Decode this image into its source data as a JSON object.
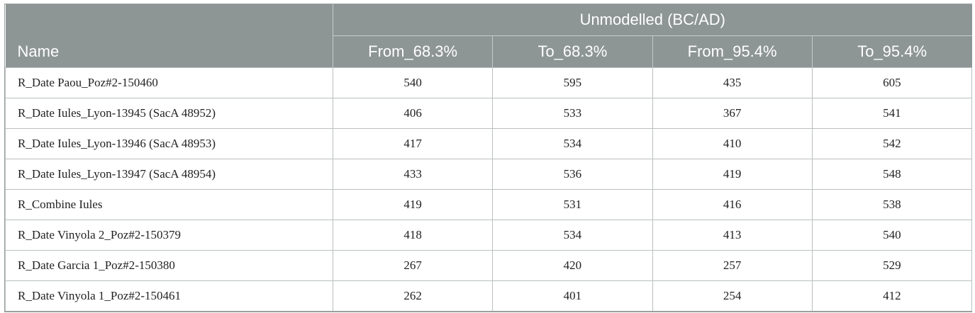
{
  "table": {
    "name_header": "Name",
    "group_header": "Unmodelled (BC/AD)",
    "columns": [
      "From_68.3%",
      "To_68.3%",
      "From_95.4%",
      "To_95.4%"
    ],
    "rows": [
      {
        "name": "R_Date Paou_Poz#2-150460",
        "values": [
          "540",
          "595",
          "435",
          "605"
        ]
      },
      {
        "name": "R_Date Iules_Lyon-13945 (SacA 48952)",
        "values": [
          "406",
          "533",
          "367",
          "541"
        ]
      },
      {
        "name": "R_Date Iules_Lyon-13946 (SacA 48953)",
        "values": [
          "417",
          "534",
          "410",
          "542"
        ]
      },
      {
        "name": "R_Date Iules_Lyon-13947 (SacA 48954)",
        "values": [
          "433",
          "536",
          "419",
          "548"
        ]
      },
      {
        "name": "R_Combine Iules",
        "values": [
          "419",
          "531",
          "416",
          "538"
        ]
      },
      {
        "name": "R_Date Vinyola 2_Poz#2-150379",
        "values": [
          "418",
          "534",
          "413",
          "540"
        ]
      },
      {
        "name": "R_Date Garcia 1_Poz#2-150380",
        "values": [
          "267",
          "420",
          "257",
          "529"
        ]
      },
      {
        "name": "R_Date Vinyola 1_Poz#2-150461",
        "values": [
          "262",
          "401",
          "254",
          "412"
        ]
      }
    ]
  },
  "colors": {
    "header_background": "#8e9595",
    "header_text": "#ffffff",
    "cell_border": "#b9bfbf"
  }
}
